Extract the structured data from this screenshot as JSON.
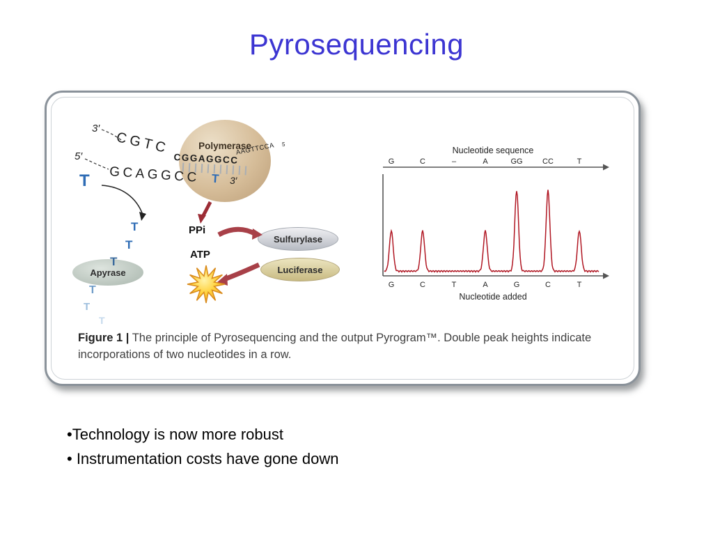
{
  "slide": {
    "title": "Pyrosequencing",
    "title_color": "#3c35d2",
    "bullets": [
      "•Technology is now more robust",
      "• Instrumentation costs have gone down"
    ]
  },
  "figure": {
    "caption": {
      "label": "Figure 1 |",
      "text": "The principle of Pyrosequencing and the output Pyrogram™. Double peak heights indicate incorporations of two nucleotides in a row."
    },
    "diagram": {
      "labels": {
        "three_prime": "3′",
        "five_prime": "5′",
        "strand_top_main": "CGTC",
        "strand_top_mid": "CGGAGGCC",
        "strand_top_small": "AAGTTCCA",
        "strand_top_super": "5",
        "strand_bottom": "GCAGGCC",
        "incorporated_base": "T",
        "nucleotide_t": "T",
        "ppi": "PPi",
        "atp": "ATP"
      },
      "enzymes": {
        "polymerase": "Polymerase",
        "sulfurylase": "Sulfurylase",
        "luciferase": "Luciferase",
        "apyrase": "Apyrase"
      }
    },
    "chart_data": {
      "type": "line",
      "top_axis_label": "Nucleotide sequence",
      "bottom_axis_label": "Nucleotide added",
      "sequence_ticks": [
        "G",
        "C",
        "–",
        "A",
        "GG",
        "CC",
        "T"
      ],
      "added_ticks": [
        "G",
        "C",
        "T",
        "A",
        "G",
        "C",
        "T"
      ],
      "peak_heights": [
        1,
        1,
        0,
        1,
        2,
        2,
        1
      ],
      "line_color": "#b01622"
    }
  }
}
